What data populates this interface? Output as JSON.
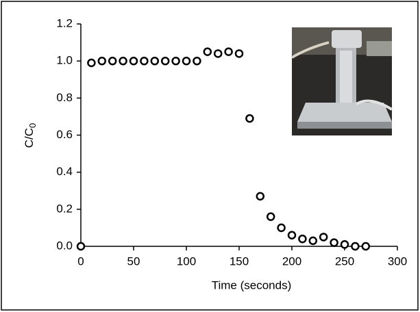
{
  "chart_data": {
    "type": "scatter",
    "xlabel": "Time (seconds)",
    "ylabel": "C/C",
    "ylabel_sub": "0",
    "x": [
      0,
      10,
      20,
      30,
      40,
      50,
      60,
      70,
      80,
      90,
      100,
      110,
      120,
      130,
      140,
      150,
      160,
      170,
      180,
      190,
      200,
      210,
      220,
      230,
      240,
      250,
      260,
      270
    ],
    "series": [
      {
        "color": "#000000",
        "values": [
          0.0,
          0.99,
          1.0,
          1.0,
          1.0,
          1.0,
          1.0,
          1.0,
          1.0,
          1.0,
          1.0,
          1.0,
          1.05,
          1.04,
          1.05,
          1.04,
          0.69,
          0.27,
          0.16,
          0.1,
          0.06,
          0.04,
          0.03,
          0.05,
          0.02,
          0.01,
          0.0,
          0.0
        ]
      }
    ],
    "xlim": [
      0,
      300
    ],
    "xticks": [
      0,
      50,
      100,
      150,
      200,
      250,
      300
    ],
    "ylim": [
      0,
      1.2
    ],
    "yticks": [
      {
        "value": 0,
        "label": "0.0"
      },
      0.2,
      0.4,
      0.6,
      0.8,
      {
        "value": 1,
        "label": "1.0"
      },
      1.2
    ],
    "grid": false
  }
}
